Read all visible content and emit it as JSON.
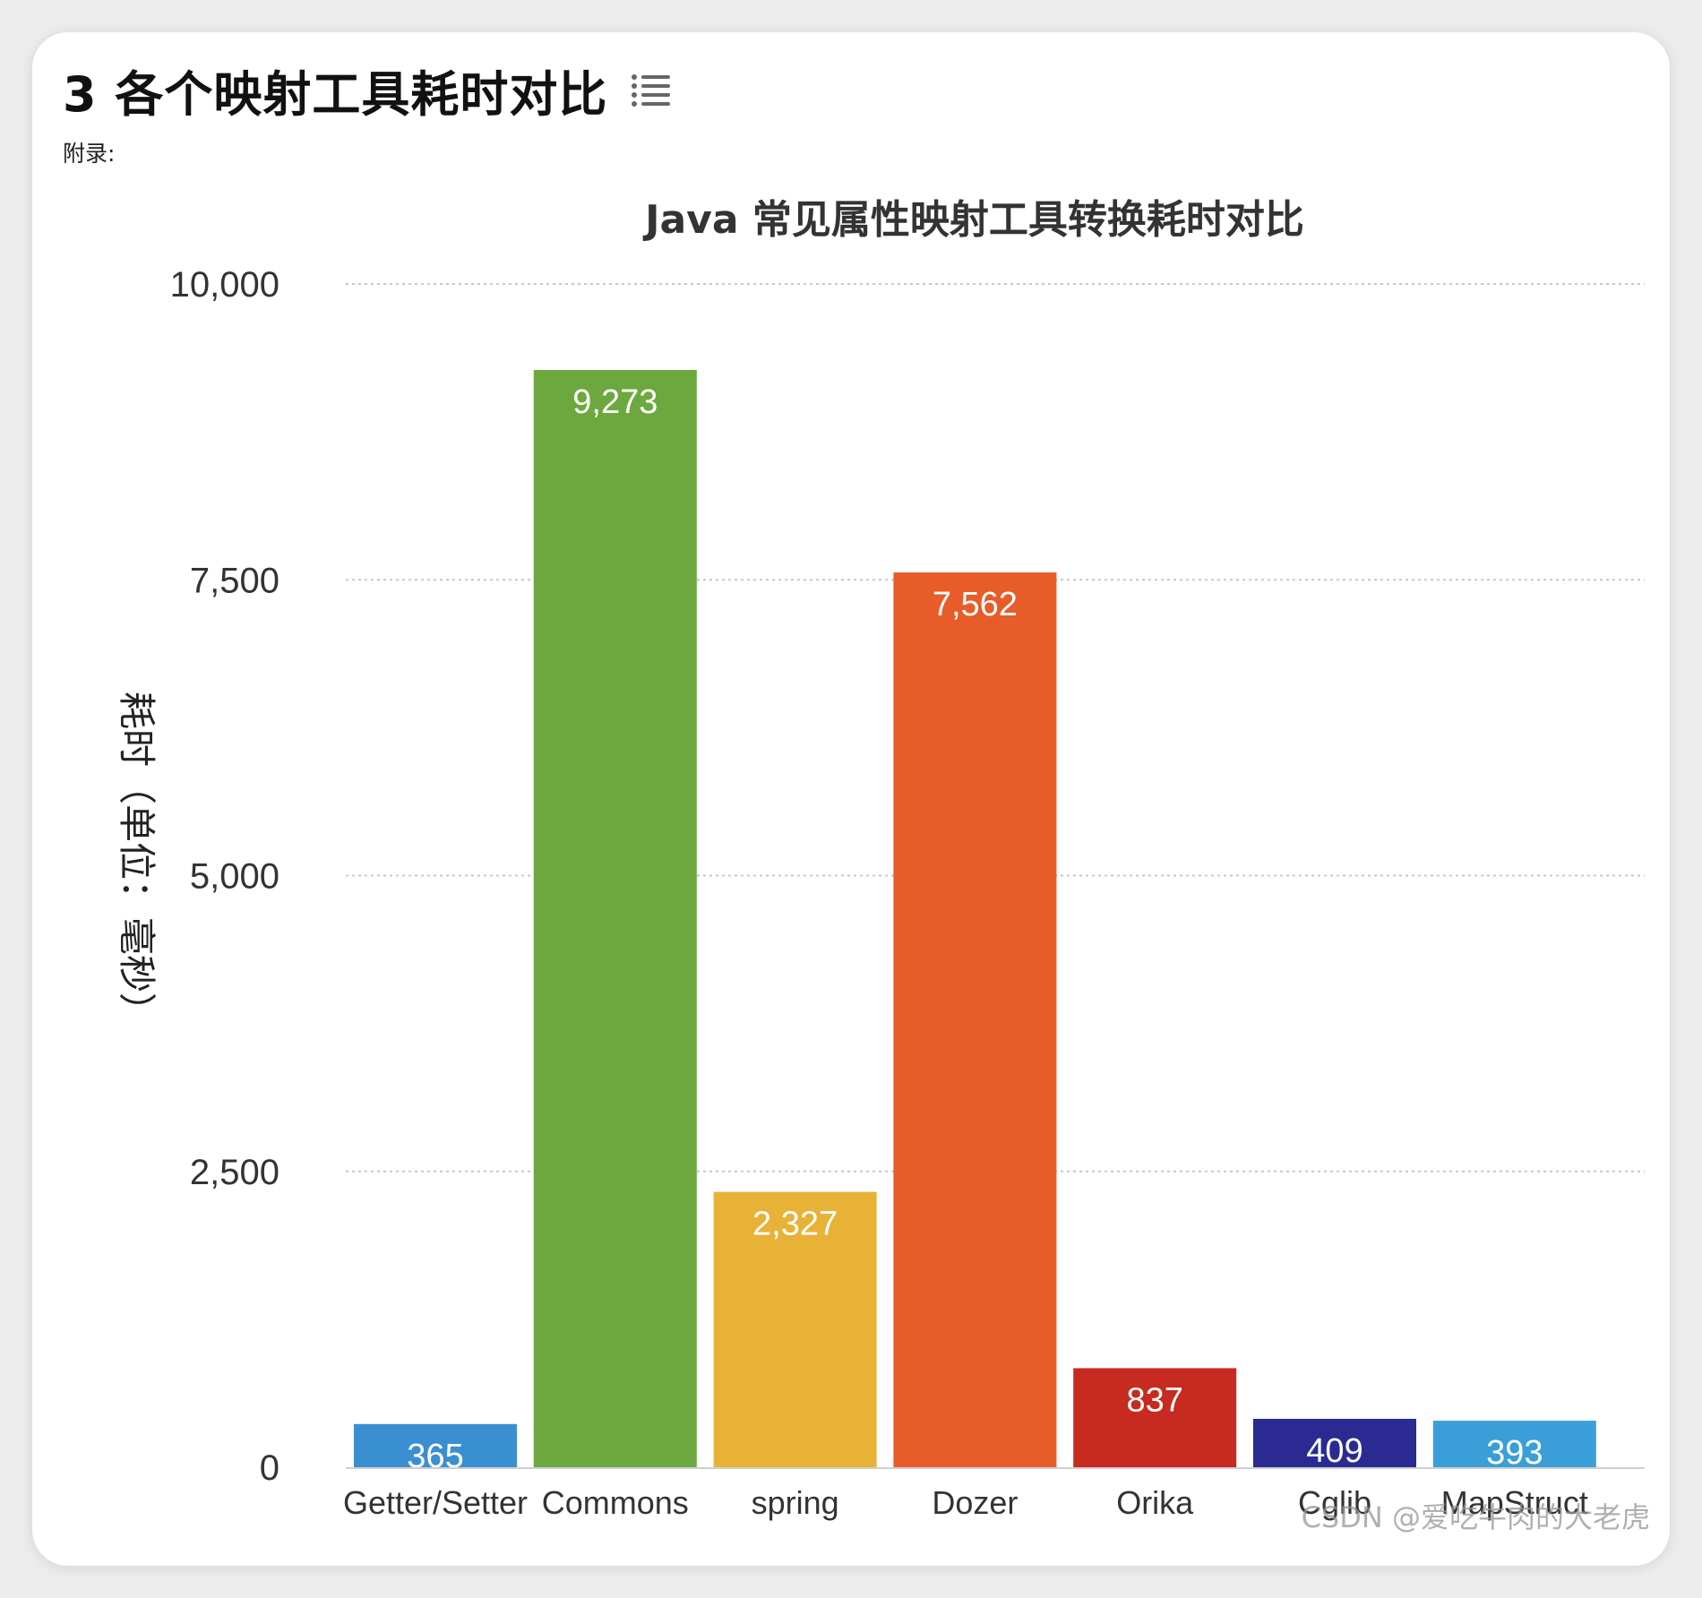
{
  "page": {
    "heading": "3 各个映射工具耗时对比",
    "heading_icon": "list-icon",
    "appendix_label": "附录:",
    "watermark": "CSDN @爱吃牛肉的大老虎"
  },
  "chart_data": {
    "type": "bar",
    "title": "Java 常见属性映射工具转换耗时对比",
    "xlabel": "",
    "ylabel": "耗时（单位：毫秒）",
    "ylim": [
      0,
      10000
    ],
    "yticks": [
      0,
      2500,
      5000,
      7500,
      10000
    ],
    "ytick_labels": [
      "0",
      "2,500",
      "5,000",
      "7,500",
      "10,000"
    ],
    "grid": true,
    "categories": [
      "Getter/Setter",
      "Commons",
      "spring",
      "Dozer",
      "Orika",
      "Cglib",
      "MapStruct"
    ],
    "values": [
      365,
      9273,
      2327,
      7562,
      837,
      409,
      393
    ],
    "value_labels": [
      "365",
      "9,273",
      "2,327",
      "7,562",
      "837",
      "409",
      "393"
    ],
    "colors": [
      "#3a8fd0",
      "#6ca83e",
      "#e8b237",
      "#e85c2a",
      "#c72a1e",
      "#2a2a92",
      "#3a9fd8"
    ]
  }
}
